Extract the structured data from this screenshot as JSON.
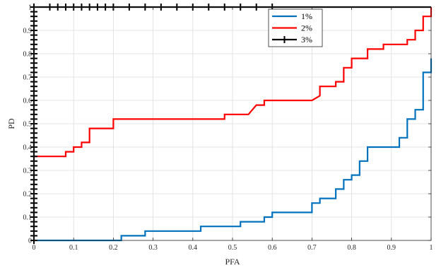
{
  "chart_data": {
    "type": "line",
    "title": "",
    "xlabel": "PFA",
    "ylabel": "PD",
    "xlim": [
      0,
      1
    ],
    "ylim": [
      0,
      1
    ],
    "xticks": [
      "0",
      "0.1",
      "0.2",
      "0.3",
      "0.4",
      "0.5",
      "0.6",
      "0.7",
      "0.8",
      "0.9",
      "1"
    ],
    "yticks": [
      "0",
      "0.1",
      "0.2",
      "0.3",
      "0.4",
      "0.5",
      "0.6",
      "0.7",
      "0.8",
      "0.9",
      "1"
    ],
    "grid": true,
    "legend_position": "top-right",
    "series": [
      {
        "name": "1%",
        "color": "#0072BD",
        "marker": "none",
        "step": true,
        "points": [
          [
            0,
            0
          ],
          [
            0.22,
            0
          ],
          [
            0.22,
            0.02
          ],
          [
            0.28,
            0.02
          ],
          [
            0.28,
            0.04
          ],
          [
            0.42,
            0.04
          ],
          [
            0.42,
            0.06
          ],
          [
            0.52,
            0.06
          ],
          [
            0.52,
            0.08
          ],
          [
            0.58,
            0.08
          ],
          [
            0.58,
            0.1
          ],
          [
            0.6,
            0.1
          ],
          [
            0.6,
            0.12
          ],
          [
            0.7,
            0.12
          ],
          [
            0.7,
            0.16
          ],
          [
            0.72,
            0.16
          ],
          [
            0.72,
            0.18
          ],
          [
            0.76,
            0.18
          ],
          [
            0.76,
            0.22
          ],
          [
            0.78,
            0.22
          ],
          [
            0.78,
            0.26
          ],
          [
            0.8,
            0.26
          ],
          [
            0.8,
            0.28
          ],
          [
            0.82,
            0.28
          ],
          [
            0.82,
            0.34
          ],
          [
            0.84,
            0.34
          ],
          [
            0.84,
            0.4
          ],
          [
            0.92,
            0.4
          ],
          [
            0.92,
            0.44
          ],
          [
            0.94,
            0.44
          ],
          [
            0.94,
            0.52
          ],
          [
            0.96,
            0.52
          ],
          [
            0.96,
            0.56
          ],
          [
            0.98,
            0.56
          ],
          [
            0.98,
            0.72
          ],
          [
            1.0,
            0.72
          ],
          [
            1.0,
            0.78
          ]
        ]
      },
      {
        "name": "2%",
        "color": "#FF0000",
        "marker": "none",
        "step": true,
        "points": [
          [
            0,
            0.36
          ],
          [
            0.08,
            0.36
          ],
          [
            0.08,
            0.38
          ],
          [
            0.1,
            0.38
          ],
          [
            0.1,
            0.4
          ],
          [
            0.12,
            0.4
          ],
          [
            0.12,
            0.42
          ],
          [
            0.14,
            0.42
          ],
          [
            0.14,
            0.48
          ],
          [
            0.2,
            0.48
          ],
          [
            0.2,
            0.52
          ],
          [
            0.48,
            0.52
          ],
          [
            0.48,
            0.54
          ],
          [
            0.54,
            0.54
          ],
          [
            0.55,
            0.56
          ],
          [
            0.56,
            0.58
          ],
          [
            0.58,
            0.58
          ],
          [
            0.58,
            0.6
          ],
          [
            0.7,
            0.6
          ],
          [
            0.72,
            0.62
          ],
          [
            0.72,
            0.66
          ],
          [
            0.76,
            0.66
          ],
          [
            0.76,
            0.68
          ],
          [
            0.78,
            0.68
          ],
          [
            0.78,
            0.74
          ],
          [
            0.8,
            0.74
          ],
          [
            0.8,
            0.78
          ],
          [
            0.84,
            0.78
          ],
          [
            0.84,
            0.82
          ],
          [
            0.88,
            0.82
          ],
          [
            0.88,
            0.84
          ],
          [
            0.94,
            0.84
          ],
          [
            0.94,
            0.86
          ],
          [
            0.96,
            0.86
          ],
          [
            0.96,
            0.9
          ],
          [
            0.98,
            0.9
          ],
          [
            0.98,
            0.96
          ],
          [
            1.0,
            0.96
          ],
          [
            1.0,
            1.0
          ]
        ]
      },
      {
        "name": "3%",
        "color": "#000000",
        "marker": "plus",
        "step": false,
        "points": [
          [
            0,
            0
          ],
          [
            0,
            1
          ],
          [
            1,
            1
          ]
        ],
        "marker_points": [
          [
            0,
            0
          ],
          [
            0,
            0.02
          ],
          [
            0,
            0.04
          ],
          [
            0,
            0.06
          ],
          [
            0,
            0.08
          ],
          [
            0,
            0.1
          ],
          [
            0,
            0.12
          ],
          [
            0,
            0.14
          ],
          [
            0,
            0.16
          ],
          [
            0,
            0.18
          ],
          [
            0,
            0.2
          ],
          [
            0,
            0.22
          ],
          [
            0,
            0.24
          ],
          [
            0,
            0.26
          ],
          [
            0,
            0.28
          ],
          [
            0,
            0.3
          ],
          [
            0,
            0.32
          ],
          [
            0,
            0.34
          ],
          [
            0,
            0.36
          ],
          [
            0,
            0.38
          ],
          [
            0,
            0.4
          ],
          [
            0,
            0.42
          ],
          [
            0,
            0.44
          ],
          [
            0,
            0.46
          ],
          [
            0,
            0.48
          ],
          [
            0,
            0.5
          ],
          [
            0,
            0.52
          ],
          [
            0,
            0.54
          ],
          [
            0,
            0.56
          ],
          [
            0,
            0.58
          ],
          [
            0,
            0.6
          ],
          [
            0,
            0.62
          ],
          [
            0,
            0.64
          ],
          [
            0,
            0.66
          ],
          [
            0,
            0.68
          ],
          [
            0,
            0.7
          ],
          [
            0,
            0.72
          ],
          [
            0,
            0.74
          ],
          [
            0,
            0.76
          ],
          [
            0,
            0.78
          ],
          [
            0,
            0.8
          ],
          [
            0,
            0.82
          ],
          [
            0,
            0.84
          ],
          [
            0,
            0.86
          ],
          [
            0,
            0.88
          ],
          [
            0,
            0.9
          ],
          [
            0,
            0.92
          ],
          [
            0,
            0.94
          ],
          [
            0,
            0.96
          ],
          [
            0,
            0.98
          ],
          [
            0,
            1
          ],
          [
            0.04,
            1
          ],
          [
            0.06,
            1
          ],
          [
            0.08,
            1
          ],
          [
            0.1,
            1
          ],
          [
            0.12,
            1
          ],
          [
            0.14,
            1
          ],
          [
            0.16,
            1
          ],
          [
            0.18,
            1
          ],
          [
            0.2,
            1
          ],
          [
            0.24,
            1
          ],
          [
            0.28,
            1
          ],
          [
            0.32,
            1
          ],
          [
            0.36,
            1
          ],
          [
            0.4,
            1
          ],
          [
            0.44,
            1
          ],
          [
            0.48,
            1
          ],
          [
            0.52,
            1
          ],
          [
            0.56,
            1
          ],
          [
            0.6,
            1
          ]
        ]
      }
    ]
  }
}
